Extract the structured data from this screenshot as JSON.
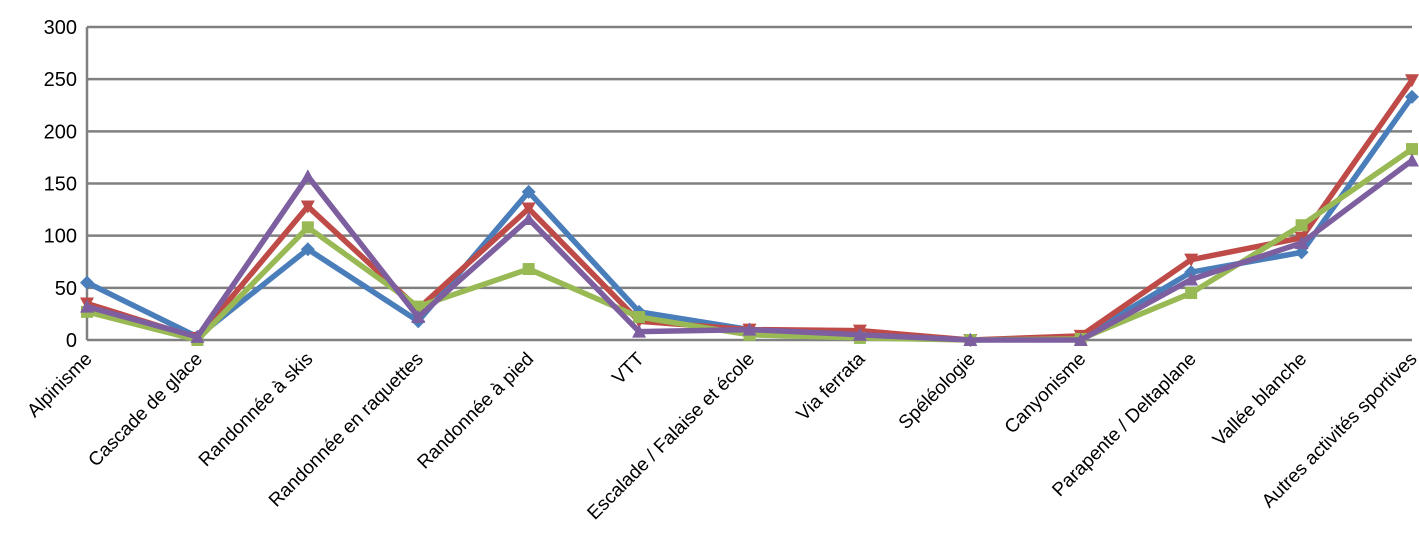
{
  "chart_data": {
    "type": "line",
    "title": "",
    "xlabel": "",
    "ylabel": "",
    "ylim": [
      0,
      300
    ],
    "yticks": [
      0,
      50,
      100,
      150,
      200,
      250,
      300
    ],
    "grid": true,
    "legend": "none",
    "categories": [
      "Alpinisme",
      "Cascade de glace",
      "Randonnée à skis",
      "Randonnée en raquettes",
      "Randonnée à pied",
      "VTT",
      "Escalade / Falaise et école",
      "Via ferrata",
      "Spéléologie",
      "Canyonisme",
      "Parapente / Deltaplane",
      "Vallée blanche",
      "Autres activités sportives"
    ],
    "series": [
      {
        "color": "#4a7ebb",
        "marker": "diamond",
        "values": [
          55,
          3,
          87,
          18,
          142,
          27,
          10,
          5,
          0,
          2,
          65,
          84,
          233
        ]
      },
      {
        "color": "#be4b48",
        "marker": "triangle-down",
        "values": [
          35,
          2,
          128,
          30,
          126,
          18,
          10,
          9,
          0,
          4,
          77,
          98,
          249
        ]
      },
      {
        "color": "#98b954",
        "marker": "square",
        "values": [
          27,
          0,
          108,
          32,
          68,
          22,
          5,
          2,
          0,
          1,
          45,
          110,
          183
        ]
      },
      {
        "color": "#7d5fa0",
        "marker": "triangle-up",
        "values": [
          32,
          3,
          157,
          22,
          116,
          8,
          10,
          5,
          0,
          0,
          58,
          93,
          172
        ]
      }
    ]
  }
}
